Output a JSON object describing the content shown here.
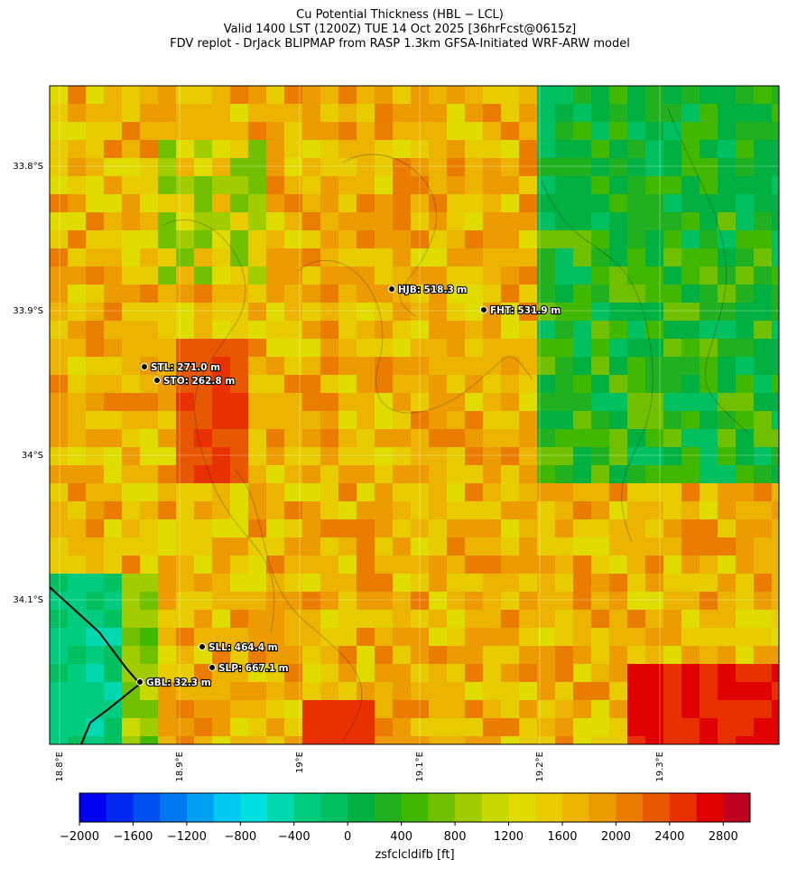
{
  "title": [
    "Cu Potential Thickness (HBL − LCL)",
    "Valid 1400 LST (1200Z) TUE 14 Oct 2025 [36hrFcst@0615z]",
    "FDV replot - DrJack BLIPMAP from RASP 1.3km GFSA-Initiated WRF-ARW model"
  ],
  "map": {
    "lat_ticks": [
      "33.8°S",
      "33.9°S",
      "34°S",
      "34.1°S"
    ],
    "lon_ticks": [
      "18.8°E",
      "18.9°E",
      "19°E",
      "19.1°E",
      "19.2°E",
      "19.3°E"
    ],
    "stations": [
      "HJB: 518.3 m",
      "FHT: 531.9 m",
      "STL: 271.0 m",
      "STO: 262.8 m",
      "SLL: 464.4 m",
      "SLP: 667.1 m",
      "GBL: 32.3 m"
    ]
  },
  "colorbar": {
    "label": "zsfclcldifb [ft]",
    "lim": [
      -2000,
      3000
    ],
    "ticks": [
      {
        "value": -2000,
        "label": "−2000"
      },
      {
        "value": -1600,
        "label": "−1600"
      },
      {
        "value": -1200,
        "label": "−1200"
      },
      {
        "value": -800,
        "label": "−800"
      },
      {
        "value": -400,
        "label": "−400"
      },
      0,
      400,
      800,
      1200,
      1600,
      2000,
      2400,
      2800
    ],
    "colors": [
      "#0000f0",
      "#0028f0",
      "#0050f0",
      "#0078f0",
      "#00a0f0",
      "#00c8f0",
      "#00e0e0",
      "#00d8b0",
      "#00cc80",
      "#00c060",
      "#00b040",
      "#20b020",
      "#40b800",
      "#70c000",
      "#a0cc00",
      "#c8d800",
      "#e0dc00",
      "#e8cc00",
      "#ecb400",
      "#ec9c00",
      "#ea7c00",
      "#e85800",
      "#e83000",
      "#e00000",
      "#c00020"
    ]
  }
}
